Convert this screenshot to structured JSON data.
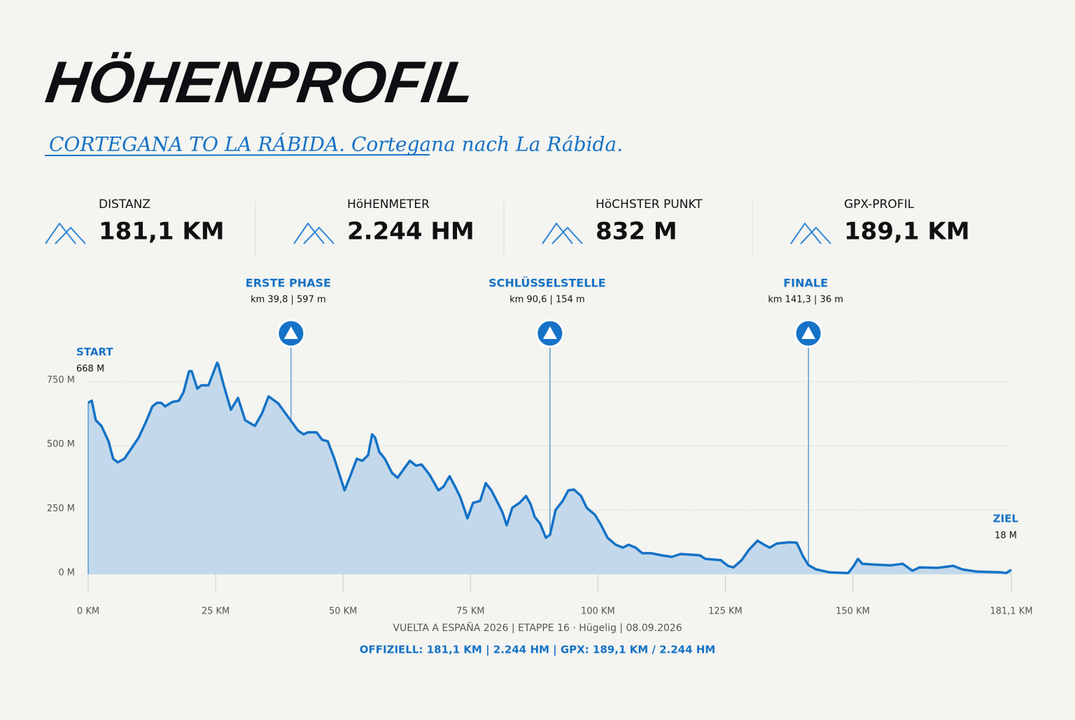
{
  "header": {
    "title": "HÖHENPROFIL",
    "subtitle": "CORTEGANA TO LA RÁBIDA. Cortegana nach La Rábida."
  },
  "stats": [
    {
      "label": "DISTANZ",
      "value": "181,1 KM"
    },
    {
      "label": "HöHENMETER",
      "value": "2.244 HM"
    },
    {
      "label": "HöCHSTER PUNKT",
      "value": "832 M"
    },
    {
      "label": "GPX-PROFIL",
      "value": "189,1 KM"
    }
  ],
  "chart_data": {
    "type": "area",
    "color": "#1572c6",
    "fill": "#c3d9eb",
    "x": [
      0,
      0.7,
      1.5,
      2.6,
      4.0,
      4.9,
      5.8,
      7.1,
      8.5,
      9.9,
      11.3,
      12.6,
      13.5,
      14.3,
      15.1,
      16.5,
      17.8,
      18.7,
      19.8,
      20.3,
      21.4,
      22.2,
      23.6,
      25.3,
      25.5,
      26.6,
      28.0,
      29.4,
      30.8,
      32.7,
      34.1,
      35.4,
      37.3,
      38.7,
      39.8,
      41.2,
      42.3,
      43.1,
      44.8,
      45.9,
      47.0,
      48.3,
      49.4,
      50.3,
      51.4,
      52.7,
      53.8,
      54.9,
      55.7,
      56.3,
      57.1,
      58.2,
      59.6,
      60.7,
      62.1,
      63.1,
      64.3,
      65.4,
      67.0,
      68.7,
      69.7,
      70.9,
      72.0,
      73.0,
      74.4,
      75.5,
      76.9,
      78.0,
      79.1,
      80.5,
      81.3,
      82.1,
      83.2,
      84.6,
      85.9,
      86.8,
      87.6,
      88.7,
      89.8,
      90.6,
      91.7,
      93.1,
      94.2,
      95.3,
      96.7,
      97.8,
      99.4,
      100.5,
      101.9,
      103.5,
      104.9,
      106.0,
      107.4,
      108.7,
      110.4,
      112.5,
      114.5,
      116.2,
      118.6,
      120.0,
      121.1,
      124.1,
      125.5,
      126.6,
      128.2,
      129.6,
      131.3,
      132.6,
      133.7,
      135.1,
      137.6,
      139.0,
      140.3,
      141.3,
      142.8,
      145.4,
      149.1,
      150.2,
      151.0,
      151.9,
      154.3,
      157.4,
      159.8,
      161.7,
      163.1,
      166.6,
      169.7,
      171.5,
      174.2,
      179.0,
      180.1,
      181.1
    ],
    "values": [
      668,
      676,
      600,
      578,
      518,
      450,
      436,
      450,
      491,
      532,
      592,
      654,
      668,
      668,
      654,
      671,
      676,
      709,
      791,
      791,
      723,
      736,
      736,
      824,
      818,
      736,
      641,
      687,
      600,
      578,
      627,
      693,
      665,
      627,
      597,
      559,
      545,
      553,
      553,
      524,
      518,
      450,
      382,
      327,
      382,
      450,
      442,
      464,
      545,
      532,
      477,
      450,
      395,
      376,
      415,
      442,
      423,
      428,
      387,
      327,
      341,
      382,
      341,
      300,
      218,
      278,
      286,
      355,
      327,
      273,
      240,
      191,
      259,
      278,
      305,
      273,
      224,
      196,
      142,
      154,
      251,
      286,
      327,
      330,
      305,
      259,
      232,
      196,
      142,
      115,
      104,
      115,
      104,
      82,
      82,
      74,
      68,
      79,
      76,
      74,
      60,
      55,
      33,
      27,
      55,
      95,
      131,
      115,
      104,
      120,
      125,
      123,
      68,
      36,
      19,
      8,
      5,
      33,
      60,
      41,
      38,
      35,
      41,
      14,
      27,
      25,
      33,
      19,
      11,
      8,
      5,
      18
    ],
    "xlim": [
      0,
      181.1
    ],
    "ylim": [
      0,
      750
    ],
    "xticks": [
      {
        "value": 0,
        "label": "0 KM"
      },
      {
        "value": 25,
        "label": "25 KM"
      },
      {
        "value": 50,
        "label": "50 KM"
      },
      {
        "value": 75,
        "label": "75 KM"
      },
      {
        "value": 100,
        "label": "100 KM"
      },
      {
        "value": 125,
        "label": "125 KM"
      },
      {
        "value": 150,
        "label": "150 KM"
      },
      {
        "value": 181.1,
        "label": "181,1 KM"
      }
    ],
    "yticks": [
      {
        "value": 0,
        "label": "0 M"
      },
      {
        "value": 250,
        "label": "250 M"
      },
      {
        "value": 500,
        "label": "500 M"
      },
      {
        "value": 750,
        "label": "750 M"
      }
    ],
    "grid": true,
    "start": {
      "label": "START",
      "detail": "668 M"
    },
    "finish": {
      "label": "ZIEL",
      "detail": "18 M"
    },
    "annotations": [
      {
        "label": "ERSTE PHASE",
        "detail": "km 39,8 | 597 m",
        "x": 39.8,
        "y": 597
      },
      {
        "label": "SCHLÜSSELSTELLE",
        "detail": "km 90,6 | 154 m",
        "x": 90.6,
        "y": 154
      },
      {
        "label": "FINALE",
        "detail": "km 141,3 | 36 m",
        "x": 141.3,
        "y": 36
      }
    ]
  },
  "footer": {
    "line1": "VUELTA A ESPAÑA 2026 | ETAPPE 16 · Hügelig | 08.09.2026",
    "line2": "OFFIZIELL: 181,1 KM | 2.244 HM | GPX: 189,1 KM / 2.244 HM"
  }
}
